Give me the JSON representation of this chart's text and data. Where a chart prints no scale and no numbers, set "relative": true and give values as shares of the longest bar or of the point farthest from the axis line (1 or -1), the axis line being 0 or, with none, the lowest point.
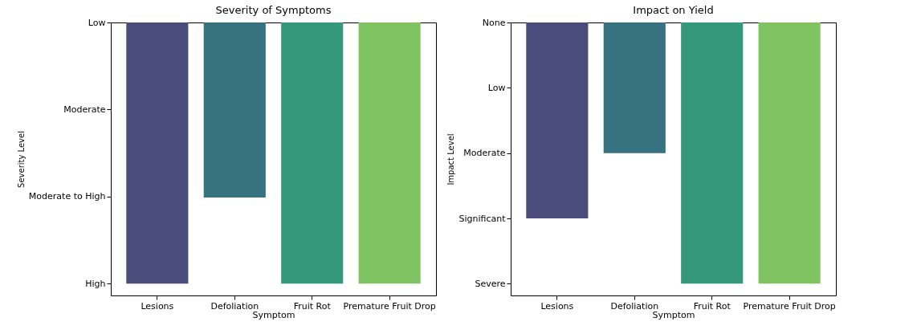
{
  "chart_data": [
    {
      "type": "bar",
      "relative": true,
      "title": "Severity of Symptoms",
      "xlabel": "Symptom",
      "ylabel": "Severity Level",
      "categories": [
        "Lesions",
        "Defoliation",
        "Fruit Rot",
        "Premature Fruit Drop"
      ],
      "values": [
        -1,
        -0.67,
        -1,
        -1
      ],
      "colors": [
        "#4a4c7c",
        "#36727f",
        "#35987b",
        "#80c362"
      ],
      "annotations": [
        "Low",
        "Moderate",
        "Moderate to High",
        "High"
      ]
    },
    {
      "type": "bar",
      "relative": true,
      "title": "Impact on Yield",
      "xlabel": "Symptom",
      "ylabel": "Impact Level",
      "categories": [
        "Lesions",
        "Defoliation",
        "Fruit Rot",
        "Premature Fruit Drop"
      ],
      "values": [
        -0.75,
        -0.5,
        -1,
        -1
      ],
      "colors": [
        "#4a4c7c",
        "#36727f",
        "#35987b",
        "#80c362"
      ],
      "annotations": [
        "None",
        "Low",
        "Moderate",
        "Significant",
        "Severe"
      ]
    }
  ]
}
